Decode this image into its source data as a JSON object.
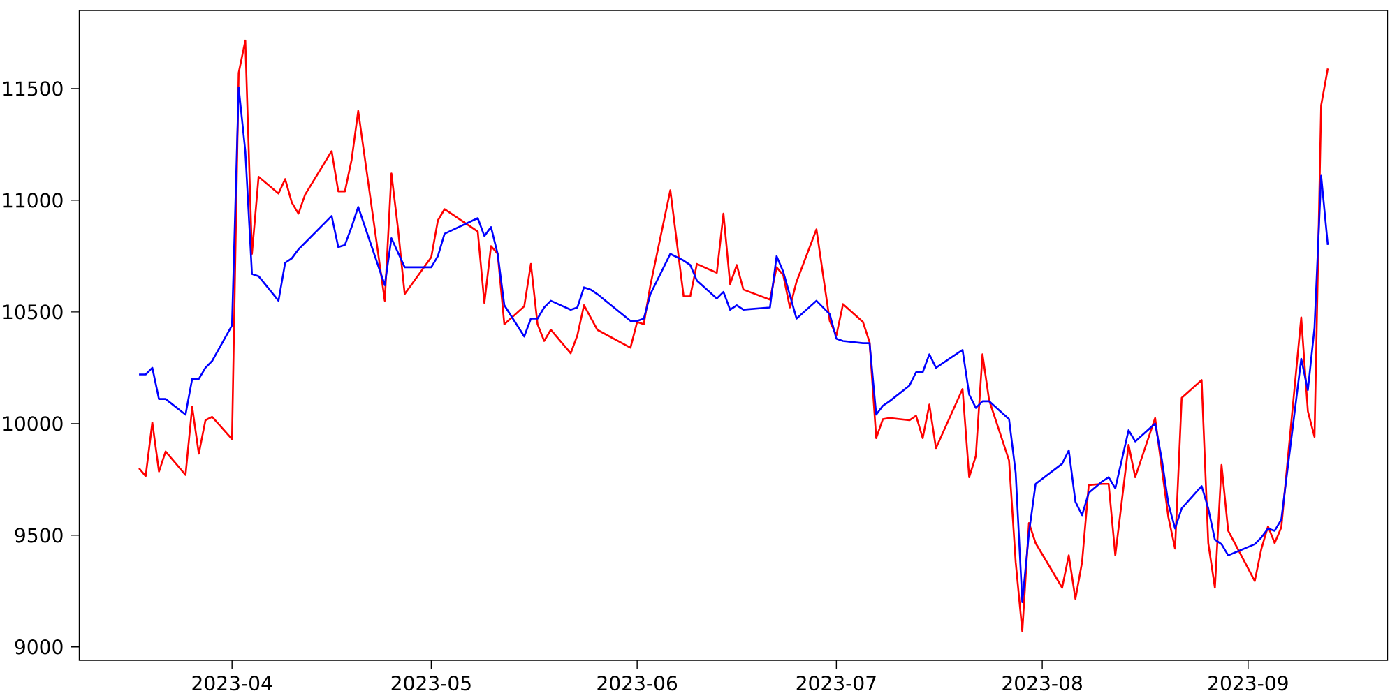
{
  "chart_data": {
    "type": "line",
    "xlim": [
      "2023-03-09",
      "2023-09-22"
    ],
    "ylim": [
      8940,
      11850
    ],
    "xticks": [
      {
        "value": "2023-04-01",
        "label": "2023-04"
      },
      {
        "value": "2023-05-01",
        "label": "2023-05"
      },
      {
        "value": "2023-06-01",
        "label": "2023-06"
      },
      {
        "value": "2023-07-01",
        "label": "2023-07"
      },
      {
        "value": "2023-08-01",
        "label": "2023-08"
      },
      {
        "value": "2023-09-01",
        "label": "2023-09"
      }
    ],
    "yticks": [
      9000,
      9500,
      10000,
      10500,
      11000,
      11500
    ],
    "series": [
      {
        "color": "#ff0000",
        "x": [
          "2023-03-18",
          "2023-03-19",
          "2023-03-20",
          "2023-03-21",
          "2023-03-22",
          "2023-03-25",
          "2023-03-26",
          "2023-03-27",
          "2023-03-28",
          "2023-03-29",
          "2023-04-01",
          "2023-04-02",
          "2023-04-03",
          "2023-04-04",
          "2023-04-05",
          "2023-04-08",
          "2023-04-09",
          "2023-04-10",
          "2023-04-11",
          "2023-04-12",
          "2023-04-16",
          "2023-04-17",
          "2023-04-18",
          "2023-04-19",
          "2023-04-20",
          "2023-04-24",
          "2023-04-25",
          "2023-04-26",
          "2023-04-27",
          "2023-05-01",
          "2023-05-02",
          "2023-05-03",
          "2023-05-08",
          "2023-05-09",
          "2023-05-10",
          "2023-05-11",
          "2023-05-12",
          "2023-05-15",
          "2023-05-16",
          "2023-05-17",
          "2023-05-18",
          "2023-05-19",
          "2023-05-22",
          "2023-05-23",
          "2023-05-24",
          "2023-05-26",
          "2023-05-31",
          "2023-06-01",
          "2023-06-02",
          "2023-06-03",
          "2023-06-06",
          "2023-06-08",
          "2023-06-09",
          "2023-06-10",
          "2023-06-13",
          "2023-06-14",
          "2023-06-15",
          "2023-06-16",
          "2023-06-17",
          "2023-06-21",
          "2023-06-22",
          "2023-06-23",
          "2023-06-24",
          "2023-06-25",
          "2023-06-28",
          "2023-06-30",
          "2023-07-01",
          "2023-07-02",
          "2023-07-05",
          "2023-07-06",
          "2023-07-07",
          "2023-07-08",
          "2023-07-09",
          "2023-07-12",
          "2023-07-13",
          "2023-07-14",
          "2023-07-15",
          "2023-07-16",
          "2023-07-20",
          "2023-07-21",
          "2023-07-22",
          "2023-07-23",
          "2023-07-24",
          "2023-07-27",
          "2023-07-28",
          "2023-07-29",
          "2023-07-30",
          "2023-07-31",
          "2023-08-04",
          "2023-08-05",
          "2023-08-06",
          "2023-08-07",
          "2023-08-08",
          "2023-08-10",
          "2023-08-11",
          "2023-08-12",
          "2023-08-14",
          "2023-08-15",
          "2023-08-18",
          "2023-08-19",
          "2023-08-20",
          "2023-08-21",
          "2023-08-22",
          "2023-08-25",
          "2023-08-26",
          "2023-08-27",
          "2023-08-28",
          "2023-08-29",
          "2023-09-02",
          "2023-09-03",
          "2023-09-04",
          "2023-09-05",
          "2023-09-06",
          "2023-09-09",
          "2023-09-10",
          "2023-09-11",
          "2023-09-12",
          "2023-09-13"
        ],
        "values": [
          9800,
          9765,
          10005,
          9785,
          9875,
          9770,
          10075,
          9865,
          10015,
          10030,
          9930,
          11570,
          11715,
          10760,
          11105,
          11030,
          11095,
          10990,
          10940,
          11025,
          11220,
          11040,
          11040,
          11180,
          11400,
          10550,
          11120,
          10870,
          10580,
          10745,
          10910,
          10960,
          10860,
          10540,
          10795,
          10760,
          10445,
          10525,
          10715,
          10445,
          10370,
          10420,
          10315,
          10395,
          10530,
          10420,
          10340,
          10455,
          10445,
          10620,
          11045,
          10570,
          10570,
          10715,
          10675,
          10940,
          10625,
          10710,
          10600,
          10555,
          10700,
          10665,
          10520,
          10635,
          10870,
          10460,
          10395,
          10535,
          10455,
          10365,
          9935,
          10020,
          10025,
          10015,
          10035,
          9935,
          10085,
          9890,
          10155,
          9760,
          9855,
          10310,
          10105,
          9835,
          9380,
          9070,
          9555,
          9465,
          9265,
          9410,
          9215,
          9380,
          9725,
          9730,
          9730,
          9410,
          9905,
          9760,
          10025,
          9800,
          9580,
          9440,
          10115,
          10195,
          9465,
          9265,
          9815,
          9520,
          9295,
          9440,
          9540,
          9465,
          9535,
          10475,
          10055,
          9940,
          11425,
          11590
        ]
      },
      {
        "color": "#0000ff",
        "x": [
          "2023-03-18",
          "2023-03-19",
          "2023-03-20",
          "2023-03-21",
          "2023-03-22",
          "2023-03-25",
          "2023-03-26",
          "2023-03-27",
          "2023-03-28",
          "2023-03-29",
          "2023-04-01",
          "2023-04-02",
          "2023-04-03",
          "2023-04-04",
          "2023-04-05",
          "2023-04-08",
          "2023-04-09",
          "2023-04-10",
          "2023-04-11",
          "2023-04-12",
          "2023-04-16",
          "2023-04-17",
          "2023-04-18",
          "2023-04-19",
          "2023-04-20",
          "2023-04-24",
          "2023-04-25",
          "2023-04-27",
          "2023-05-01",
          "2023-05-02",
          "2023-05-03",
          "2023-05-08",
          "2023-05-09",
          "2023-05-10",
          "2023-05-11",
          "2023-05-12",
          "2023-05-15",
          "2023-05-16",
          "2023-05-17",
          "2023-05-18",
          "2023-05-19",
          "2023-05-22",
          "2023-05-23",
          "2023-05-24",
          "2023-05-25",
          "2023-05-26",
          "2023-05-31",
          "2023-06-01",
          "2023-06-02",
          "2023-06-03",
          "2023-06-06",
          "2023-06-08",
          "2023-06-09",
          "2023-06-10",
          "2023-06-13",
          "2023-06-14",
          "2023-06-15",
          "2023-06-16",
          "2023-06-17",
          "2023-06-21",
          "2023-06-22",
          "2023-06-23",
          "2023-06-25",
          "2023-06-28",
          "2023-06-30",
          "2023-07-01",
          "2023-07-02",
          "2023-07-05",
          "2023-07-06",
          "2023-07-07",
          "2023-07-08",
          "2023-07-09",
          "2023-07-12",
          "2023-07-13",
          "2023-07-14",
          "2023-07-15",
          "2023-07-16",
          "2023-07-20",
          "2023-07-21",
          "2023-07-22",
          "2023-07-23",
          "2023-07-24",
          "2023-07-27",
          "2023-07-28",
          "2023-07-29",
          "2023-07-30",
          "2023-07-31",
          "2023-08-04",
          "2023-08-05",
          "2023-08-06",
          "2023-08-07",
          "2023-08-08",
          "2023-08-10",
          "2023-08-11",
          "2023-08-12",
          "2023-08-14",
          "2023-08-15",
          "2023-08-18",
          "2023-08-19",
          "2023-08-20",
          "2023-08-21",
          "2023-08-22",
          "2023-08-25",
          "2023-08-26",
          "2023-08-27",
          "2023-08-28",
          "2023-08-29",
          "2023-09-02",
          "2023-09-03",
          "2023-09-04",
          "2023-09-05",
          "2023-09-06",
          "2023-09-09",
          "2023-09-10",
          "2023-09-11",
          "2023-09-12",
          "2023-09-13"
        ],
        "values": [
          10220,
          10220,
          10250,
          10110,
          10110,
          10040,
          10200,
          10200,
          10250,
          10280,
          10440,
          11505,
          11220,
          10670,
          10660,
          10550,
          10720,
          10740,
          10780,
          10810,
          10930,
          10790,
          10800,
          10880,
          10970,
          10620,
          10830,
          10700,
          10700,
          10750,
          10850,
          10920,
          10840,
          10880,
          10760,
          10530,
          10390,
          10470,
          10470,
          10520,
          10550,
          10510,
          10520,
          10610,
          10600,
          10580,
          10460,
          10460,
          10470,
          10580,
          10760,
          10730,
          10710,
          10640,
          10560,
          10590,
          10510,
          10530,
          10510,
          10520,
          10750,
          10680,
          10470,
          10550,
          10490,
          10380,
          10370,
          10360,
          10360,
          10040,
          10080,
          10100,
          10170,
          10230,
          10230,
          10310,
          10250,
          10330,
          10130,
          10070,
          10100,
          10100,
          10020,
          9780,
          9200,
          9510,
          9730,
          9820,
          9880,
          9650,
          9590,
          9690,
          9740,
          9760,
          9710,
          9970,
          9920,
          10000,
          9840,
          9640,
          9530,
          9620,
          9720,
          9620,
          9480,
          9460,
          9410,
          9460,
          9490,
          9530,
          9520,
          9570,
          10290,
          10150,
          10430,
          11110,
          10800
        ]
      }
    ]
  }
}
